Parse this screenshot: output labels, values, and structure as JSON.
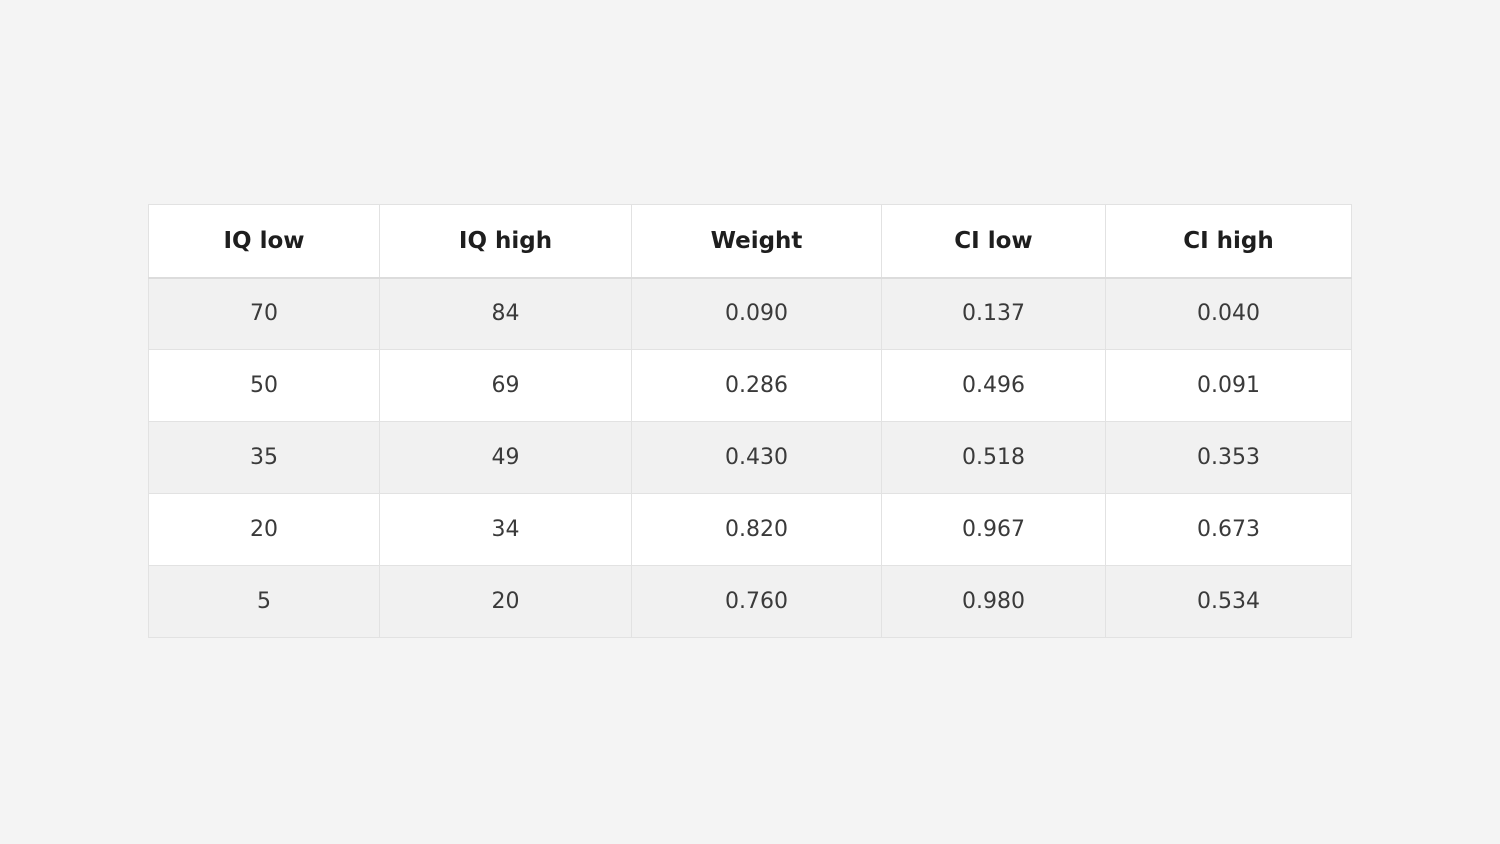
{
  "table": {
    "columns": [
      "IQ low",
      "IQ high",
      "Weight",
      "CI low",
      "CI high"
    ],
    "rows": [
      [
        "70",
        "84",
        "0.090",
        "0.137",
        "0.040"
      ],
      [
        "50",
        "69",
        "0.286",
        "0.496",
        "0.091"
      ],
      [
        "35",
        "49",
        "0.430",
        "0.518",
        "0.353"
      ],
      [
        "20",
        "34",
        "0.820",
        "0.967",
        "0.673"
      ],
      [
        "5",
        "20",
        "0.760",
        "0.980",
        "0.534"
      ]
    ]
  }
}
